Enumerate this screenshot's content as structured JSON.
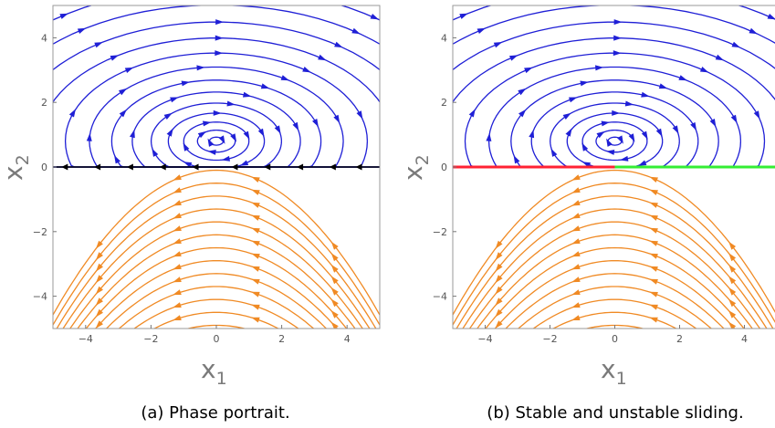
{
  "colors": {
    "upper_flow": "#1f1fd6",
    "lower_flow": "#f08a24",
    "switching_line": "#000000",
    "unstable_sliding": "#ff2233",
    "stable_sliding": "#33ee33"
  },
  "panels": [
    {
      "caption": "(a) Phase portrait.",
      "x_label": "x",
      "x_sub": "1",
      "y_label": "x",
      "y_sub": "2",
      "x_range": [
        -5,
        5
      ],
      "y_range": [
        -5,
        5
      ],
      "x_ticks": [
        "−4",
        "−2",
        "0",
        "2",
        "4"
      ],
      "y_ticks": [
        "−4",
        "−2",
        "0",
        "2",
        "4"
      ],
      "sliding": "none"
    },
    {
      "caption": "(b) Stable and unstable sliding.",
      "x_label": "x",
      "x_sub": "1",
      "y_label": "x",
      "y_sub": "2",
      "x_range": [
        -5,
        5
      ],
      "y_range": [
        -5,
        5
      ],
      "x_ticks": [
        "−4",
        "−2",
        "0",
        "2",
        "4"
      ],
      "y_ticks": [
        "−4",
        "−2",
        "0",
        "2",
        "4"
      ],
      "sliding": "unstable for x1 < 0, stable for x1 > 0"
    }
  ]
}
